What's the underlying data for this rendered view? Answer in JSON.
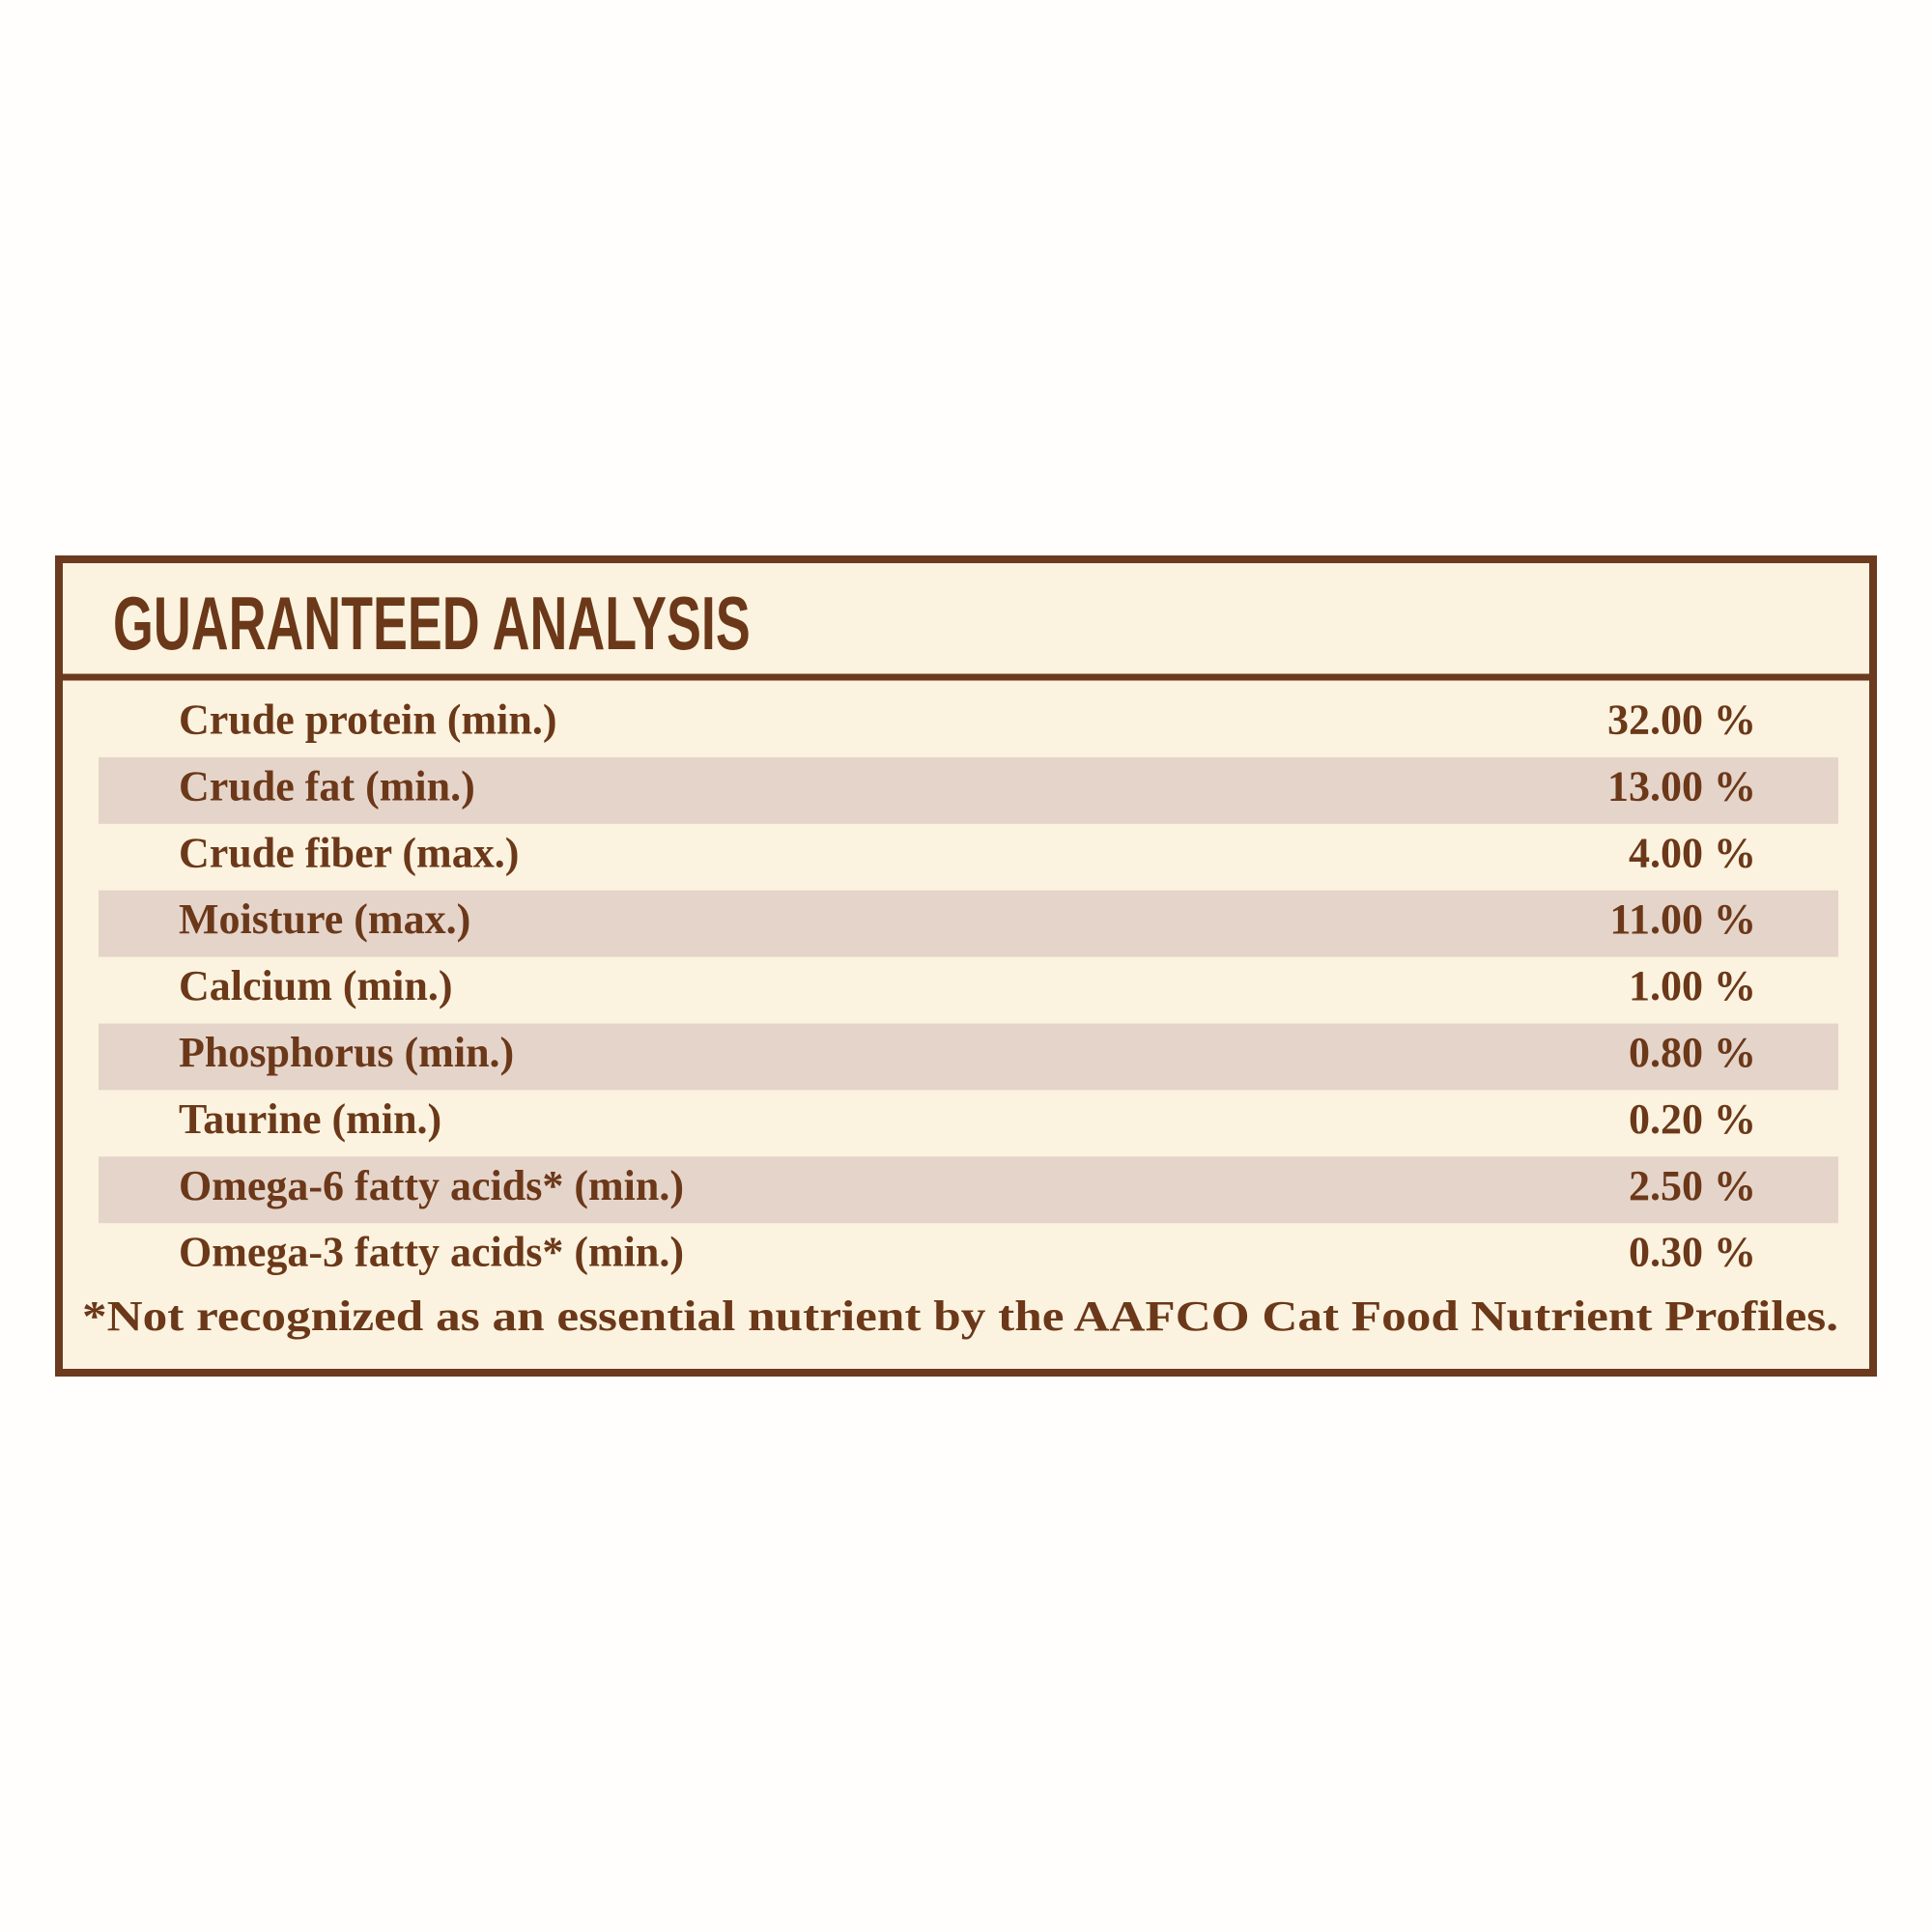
{
  "title": "GUARANTEED ANALYSIS",
  "table": {
    "rows": [
      [
        "Crude protein (min.)",
        "32.00 %"
      ],
      [
        "Crude fat (min.)",
        "13.00 %"
      ],
      [
        "Crude fiber (max.)",
        "4.00 %"
      ],
      [
        "Moisture (max.)",
        "11.00 %"
      ],
      [
        "Calcium (min.)",
        "1.00 %"
      ],
      [
        "Phosphorus (min.)",
        "0.80 %"
      ],
      [
        "Taurine (min.)",
        "0.20 %"
      ],
      [
        "Omega-6 fatty acids* (min.)",
        "2.50 %"
      ],
      [
        "Omega-3 fatty acids* (min.)",
        "0.30 %"
      ]
    ]
  },
  "footnote": "*Not recognized as an essential nutrient by the AAFCO Cat Food Nutrient Profiles."
}
